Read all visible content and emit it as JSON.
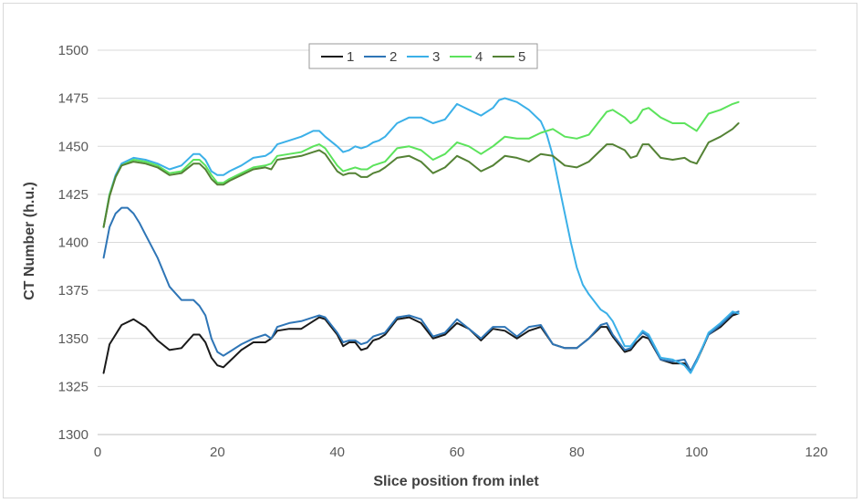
{
  "chart_data": {
    "type": "line",
    "title": "",
    "xlabel": "Slice position from inlet",
    "ylabel": "CT Number (h.u.)",
    "xlim": [
      0,
      120
    ],
    "ylim": [
      1300,
      1500
    ],
    "xticks": [
      0,
      20,
      40,
      60,
      80,
      100,
      120
    ],
    "yticks": [
      1300,
      1325,
      1350,
      1375,
      1400,
      1425,
      1450,
      1475,
      1500
    ],
    "grid": "horizontal",
    "legend_position": "top-center",
    "series": [
      {
        "name": "1",
        "color": "#1a1a1a",
        "x": [
          1,
          2,
          4,
          6,
          8,
          10,
          12,
          14,
          16,
          17,
          18,
          19,
          20,
          21,
          22,
          24,
          26,
          28,
          29,
          30,
          32,
          34,
          36,
          37,
          38,
          40,
          41,
          42,
          43,
          44,
          45,
          46,
          47,
          48,
          50,
          52,
          54,
          56,
          58,
          60,
          62,
          64,
          66,
          68,
          70,
          72,
          74,
          76,
          78,
          80,
          82,
          84,
          85,
          86,
          88,
          89,
          90,
          91,
          92,
          94,
          96,
          98,
          99,
          100,
          102,
          104,
          106,
          107
        ],
        "y": [
          1332,
          1347,
          1357,
          1360,
          1356,
          1349,
          1344,
          1345,
          1352,
          1352,
          1348,
          1340,
          1336,
          1335,
          1338,
          1344,
          1348,
          1348,
          1350,
          1354,
          1355,
          1355,
          1359,
          1361,
          1360,
          1352,
          1346,
          1348,
          1348,
          1344,
          1345,
          1349,
          1350,
          1352,
          1360,
          1361,
          1358,
          1350,
          1352,
          1358,
          1355,
          1349,
          1355,
          1354,
          1350,
          1354,
          1356,
          1347,
          1345,
          1345,
          1350,
          1356,
          1356,
          1351,
          1343,
          1344,
          1348,
          1351,
          1350,
          1339,
          1337,
          1337,
          1333,
          1338,
          1352,
          1356,
          1362,
          1363
        ]
      },
      {
        "name": "2",
        "color": "#2e75b6",
        "x": [
          1,
          2,
          3,
          4,
          5,
          6,
          7,
          8,
          10,
          12,
          14,
          16,
          17,
          18,
          19,
          20,
          21,
          22,
          24,
          26,
          28,
          29,
          30,
          32,
          34,
          36,
          37,
          38,
          40,
          41,
          42,
          43,
          44,
          45,
          46,
          47,
          48,
          50,
          52,
          54,
          56,
          58,
          60,
          62,
          64,
          66,
          68,
          70,
          72,
          74,
          76,
          78,
          80,
          82,
          84,
          85,
          86,
          88,
          89,
          90,
          91,
          92,
          94,
          96,
          98,
          99,
          100,
          102,
          104,
          106,
          107
        ],
        "y": [
          1392,
          1408,
          1415,
          1418,
          1418,
          1415,
          1410,
          1404,
          1392,
          1377,
          1370,
          1370,
          1367,
          1362,
          1350,
          1343,
          1341,
          1343,
          1347,
          1350,
          1352,
          1350,
          1356,
          1358,
          1359,
          1361,
          1362,
          1361,
          1353,
          1348,
          1349,
          1349,
          1347,
          1348,
          1351,
          1352,
          1353,
          1361,
          1362,
          1360,
          1351,
          1353,
          1360,
          1355,
          1350,
          1356,
          1356,
          1351,
          1356,
          1357,
          1347,
          1345,
          1345,
          1350,
          1357,
          1358,
          1352,
          1344,
          1345,
          1350,
          1353,
          1351,
          1339,
          1338,
          1339,
          1333,
          1339,
          1352,
          1357,
          1363,
          1364
        ]
      },
      {
        "name": "3",
        "color": "#3bb0e8",
        "x": [
          1,
          2,
          3,
          4,
          6,
          8,
          10,
          12,
          14,
          16,
          17,
          18,
          19,
          20,
          21,
          22,
          24,
          26,
          28,
          29,
          30,
          32,
          34,
          36,
          37,
          38,
          40,
          41,
          42,
          43,
          44,
          45,
          46,
          47,
          48,
          50,
          52,
          54,
          56,
          58,
          60,
          62,
          64,
          66,
          67,
          68,
          70,
          72,
          74,
          75,
          76,
          77,
          78,
          79,
          80,
          81,
          82,
          84,
          85,
          86,
          88,
          89,
          90,
          91,
          92,
          94,
          96,
          98,
          99,
          100,
          102,
          104,
          106,
          107
        ],
        "y": [
          1408,
          1425,
          1435,
          1441,
          1444,
          1443,
          1441,
          1438,
          1440,
          1446,
          1446,
          1443,
          1437,
          1435,
          1435,
          1437,
          1440,
          1444,
          1445,
          1447,
          1451,
          1453,
          1455,
          1458,
          1458,
          1455,
          1450,
          1447,
          1448,
          1450,
          1449,
          1450,
          1452,
          1453,
          1455,
          1462,
          1465,
          1465,
          1462,
          1464,
          1472,
          1469,
          1466,
          1470,
          1474,
          1475,
          1473,
          1469,
          1463,
          1456,
          1445,
          1430,
          1415,
          1400,
          1387,
          1378,
          1373,
          1365,
          1363,
          1359,
          1346,
          1346,
          1350,
          1354,
          1352,
          1340,
          1339,
          1336,
          1332,
          1338,
          1353,
          1358,
          1364,
          1363
        ]
      },
      {
        "name": "4",
        "color": "#5ce35c",
        "x": [
          1,
          2,
          3,
          4,
          6,
          8,
          10,
          12,
          14,
          16,
          17,
          18,
          19,
          20,
          21,
          22,
          24,
          26,
          28,
          29,
          30,
          32,
          34,
          36,
          37,
          38,
          40,
          41,
          42,
          43,
          44,
          45,
          46,
          47,
          48,
          50,
          52,
          54,
          56,
          58,
          60,
          62,
          64,
          66,
          68,
          70,
          72,
          74,
          76,
          78,
          80,
          82,
          84,
          85,
          86,
          88,
          89,
          90,
          91,
          92,
          94,
          96,
          98,
          99,
          100,
          102,
          104,
          106,
          107
        ],
        "y": [
          1408,
          1425,
          1434,
          1440,
          1443,
          1442,
          1440,
          1436,
          1437,
          1443,
          1443,
          1440,
          1435,
          1431,
          1431,
          1433,
          1436,
          1439,
          1440,
          1441,
          1445,
          1446,
          1447,
          1450,
          1451,
          1449,
          1440,
          1437,
          1438,
          1439,
          1438,
          1438,
          1440,
          1441,
          1442,
          1449,
          1450,
          1448,
          1443,
          1446,
          1452,
          1450,
          1446,
          1450,
          1455,
          1454,
          1454,
          1457,
          1459,
          1455,
          1454,
          1456,
          1464,
          1468,
          1469,
          1465,
          1462,
          1464,
          1469,
          1470,
          1465,
          1462,
          1462,
          1460,
          1458,
          1467,
          1469,
          1472,
          1473
        ]
      },
      {
        "name": "5",
        "color": "#548235",
        "x": [
          1,
          2,
          3,
          4,
          6,
          8,
          10,
          12,
          14,
          16,
          17,
          18,
          19,
          20,
          21,
          22,
          24,
          26,
          28,
          29,
          30,
          32,
          34,
          36,
          37,
          38,
          40,
          41,
          42,
          43,
          44,
          45,
          46,
          47,
          48,
          50,
          52,
          54,
          56,
          58,
          60,
          62,
          64,
          66,
          68,
          70,
          72,
          74,
          76,
          78,
          80,
          82,
          84,
          85,
          86,
          88,
          89,
          90,
          91,
          92,
          94,
          96,
          98,
          99,
          100,
          102,
          104,
          106,
          107
        ],
        "y": [
          1408,
          1424,
          1434,
          1440,
          1442,
          1441,
          1439,
          1435,
          1436,
          1441,
          1441,
          1438,
          1433,
          1430,
          1430,
          1432,
          1435,
          1438,
          1439,
          1438,
          1443,
          1444,
          1445,
          1447,
          1448,
          1446,
          1437,
          1435,
          1436,
          1436,
          1434,
          1434,
          1436,
          1437,
          1439,
          1444,
          1445,
          1442,
          1436,
          1439,
          1445,
          1442,
          1437,
          1440,
          1445,
          1444,
          1442,
          1446,
          1445,
          1440,
          1439,
          1442,
          1448,
          1451,
          1451,
          1448,
          1444,
          1445,
          1451,
          1451,
          1444,
          1443,
          1444,
          1442,
          1441,
          1452,
          1455,
          1459,
          1462
        ]
      }
    ]
  }
}
